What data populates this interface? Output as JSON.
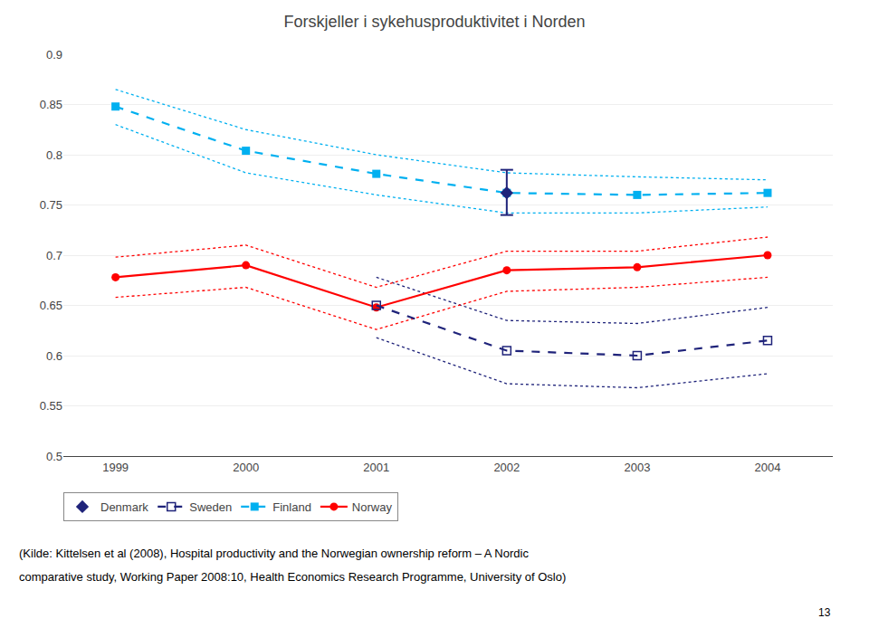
{
  "chart_data": {
    "type": "line",
    "title": "Forskjeller i sykehusproduktivitet i Norden",
    "xlim": [
      1998.6,
      2004.5
    ],
    "xticks": [
      1999,
      2000,
      2001,
      2002,
      2003,
      2004
    ],
    "ylim": [
      0.5,
      0.9
    ],
    "yticks": [
      0.5,
      0.55,
      0.6,
      0.65,
      0.7,
      0.75,
      0.8,
      0.85,
      0.9
    ],
    "grid": true,
    "legend": "bottom",
    "series": [
      {
        "name": "Denmark",
        "color": "#1f237a",
        "marker": "diamond",
        "line_style": "none",
        "x": [
          2002
        ],
        "values": [
          0.762
        ],
        "error_upper": [
          0.785
        ],
        "error_lower": [
          0.74
        ]
      },
      {
        "name": "Sweden",
        "color": "#1f237a",
        "marker": "square-open",
        "line_style": "dashed",
        "x": [
          2001,
          2002,
          2003,
          2004
        ],
        "values": [
          0.65,
          0.605,
          0.6,
          0.615
        ],
        "upper": [
          0.678,
          0.635,
          0.632,
          0.648
        ],
        "lower": [
          0.618,
          0.572,
          0.568,
          0.582
        ]
      },
      {
        "name": "Finland",
        "color": "#00b0f0",
        "marker": "square",
        "line_style": "dashed",
        "x": [
          1999,
          2000,
          2001,
          2002,
          2003,
          2004
        ],
        "values": [
          0.848,
          0.804,
          0.781,
          0.762,
          0.76,
          0.762
        ],
        "upper": [
          0.865,
          0.825,
          0.8,
          0.782,
          0.778,
          0.775
        ],
        "lower": [
          0.83,
          0.782,
          0.76,
          0.742,
          0.742,
          0.748
        ]
      },
      {
        "name": "Norway",
        "color": "#ff0000",
        "marker": "circle",
        "line_style": "solid",
        "x": [
          1999,
          2000,
          2001,
          2002,
          2003,
          2004
        ],
        "values": [
          0.678,
          0.69,
          0.648,
          0.685,
          0.688,
          0.7
        ],
        "upper": [
          0.698,
          0.71,
          0.668,
          0.704,
          0.704,
          0.718
        ],
        "lower": [
          0.658,
          0.668,
          0.626,
          0.664,
          0.668,
          0.678
        ]
      }
    ],
    "annotations": [
      "(Kilde: Kittelsen et al (2008), Hospital productivity and the Norwegian ownership reform – A Nordic",
      "comparative study, Working Paper 2008:10, Health Economics Research Programme, University of Oslo)",
      "13"
    ]
  }
}
